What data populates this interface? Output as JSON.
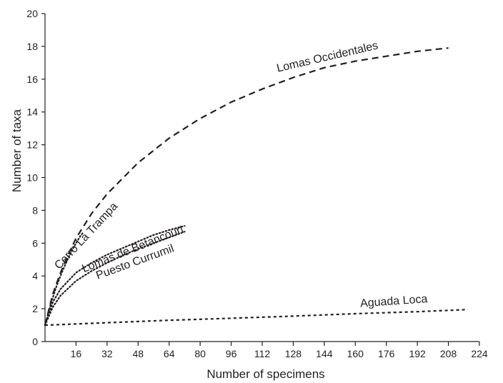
{
  "chart_data": {
    "type": "line",
    "title": "",
    "xlabel": "Number of specimens",
    "ylabel": "Number of taxa",
    "xlim": [
      0,
      224
    ],
    "ylim": [
      0,
      20
    ],
    "x_ticks": [
      16,
      32,
      48,
      64,
      80,
      96,
      112,
      128,
      144,
      160,
      176,
      192,
      208,
      224
    ],
    "y_ticks": [
      0,
      2,
      4,
      6,
      8,
      10,
      12,
      14,
      16,
      18,
      20
    ],
    "grid": false,
    "legend": "none (series labelled directly on curves)",
    "series": [
      {
        "name": "Lomas Occidentales",
        "line_style": "dashed",
        "points": [
          [
            0,
            1
          ],
          [
            4,
            2.9
          ],
          [
            8,
            4.2
          ],
          [
            12,
            5.3
          ],
          [
            16,
            6.3
          ],
          [
            24,
            7.8
          ],
          [
            32,
            9.0
          ],
          [
            48,
            10.9
          ],
          [
            64,
            12.4
          ],
          [
            80,
            13.6
          ],
          [
            96,
            14.6
          ],
          [
            112,
            15.4
          ],
          [
            128,
            16.1
          ],
          [
            144,
            16.7
          ],
          [
            160,
            17.1
          ],
          [
            176,
            17.4
          ],
          [
            192,
            17.7
          ],
          [
            208,
            17.9
          ]
        ]
      },
      {
        "name": "Cerro La Trampa",
        "line_style": "dotted",
        "points": [
          [
            0,
            1
          ],
          [
            3,
            2.3
          ],
          [
            6,
            3.4
          ],
          [
            9,
            4.3
          ],
          [
            12,
            5.1
          ],
          [
            15,
            5.8
          ],
          [
            18,
            6.4
          ],
          [
            20,
            6.7
          ]
        ]
      },
      {
        "name": "Lomas de Betancourt",
        "line_style": "dotted",
        "points": [
          [
            0,
            1
          ],
          [
            4,
            2.4
          ],
          [
            8,
            3.2
          ],
          [
            16,
            4.2
          ],
          [
            24,
            4.8
          ],
          [
            32,
            5.3
          ],
          [
            40,
            5.7
          ],
          [
            48,
            6.1
          ],
          [
            56,
            6.5
          ],
          [
            64,
            6.8
          ],
          [
            72,
            7.05
          ]
        ]
      },
      {
        "name": "Puesto Currumil",
        "line_style": "dotted",
        "points": [
          [
            0,
            1
          ],
          [
            4,
            2.1
          ],
          [
            8,
            2.8
          ],
          [
            16,
            3.7
          ],
          [
            24,
            4.3
          ],
          [
            32,
            4.8
          ],
          [
            40,
            5.25
          ],
          [
            48,
            5.65
          ],
          [
            56,
            6.0
          ],
          [
            64,
            6.35
          ],
          [
            72,
            6.7
          ]
        ]
      },
      {
        "name": "Aguada Loca",
        "line_style": "dashed-short",
        "points": [
          [
            0,
            1
          ],
          [
            32,
            1.15
          ],
          [
            64,
            1.3
          ],
          [
            96,
            1.42
          ],
          [
            128,
            1.55
          ],
          [
            160,
            1.7
          ],
          [
            192,
            1.82
          ],
          [
            218,
            1.95
          ]
        ]
      }
    ]
  }
}
